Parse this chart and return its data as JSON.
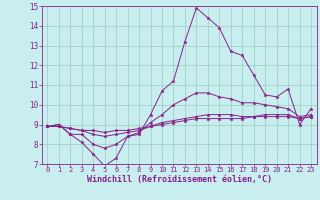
{
  "xlabel": "Windchill (Refroidissement éolien,°C)",
  "bg_color": "#c8eef0",
  "line_color": "#882288",
  "grid_color": "#99ccbb",
  "xmin": 0,
  "xmax": 23,
  "ymin": 7,
  "ymax": 15,
  "hours": [
    0,
    1,
    2,
    3,
    4,
    5,
    6,
    7,
    8,
    9,
    10,
    11,
    12,
    13,
    14,
    15,
    16,
    17,
    18,
    19,
    20,
    21,
    22,
    23
  ],
  "line1": [
    8.9,
    9.0,
    8.5,
    8.1,
    7.5,
    6.9,
    7.3,
    8.4,
    8.5,
    9.5,
    10.7,
    11.2,
    13.2,
    14.9,
    14.4,
    13.9,
    12.7,
    12.5,
    11.5,
    10.5,
    10.4,
    10.8,
    9.0,
    9.8
  ],
  "line2": [
    8.9,
    9.0,
    8.5,
    8.5,
    8.0,
    7.8,
    8.0,
    8.4,
    8.6,
    9.1,
    9.5,
    10.0,
    10.3,
    10.6,
    10.6,
    10.4,
    10.3,
    10.1,
    10.1,
    10.0,
    9.9,
    9.8,
    9.4,
    9.5
  ],
  "line3": [
    8.9,
    8.9,
    8.8,
    8.7,
    8.5,
    8.4,
    8.5,
    8.6,
    8.7,
    8.9,
    9.1,
    9.2,
    9.3,
    9.4,
    9.5,
    9.5,
    9.5,
    9.4,
    9.4,
    9.5,
    9.5,
    9.5,
    9.3,
    9.4
  ],
  "line4": [
    8.9,
    8.9,
    8.8,
    8.7,
    8.7,
    8.6,
    8.7,
    8.7,
    8.8,
    8.9,
    9.0,
    9.1,
    9.2,
    9.3,
    9.3,
    9.3,
    9.3,
    9.3,
    9.4,
    9.4,
    9.4,
    9.4,
    9.3,
    9.4
  ],
  "xtick_fontsize": 5.0,
  "ytick_fontsize": 5.5,
  "xlabel_fontsize": 6.0
}
